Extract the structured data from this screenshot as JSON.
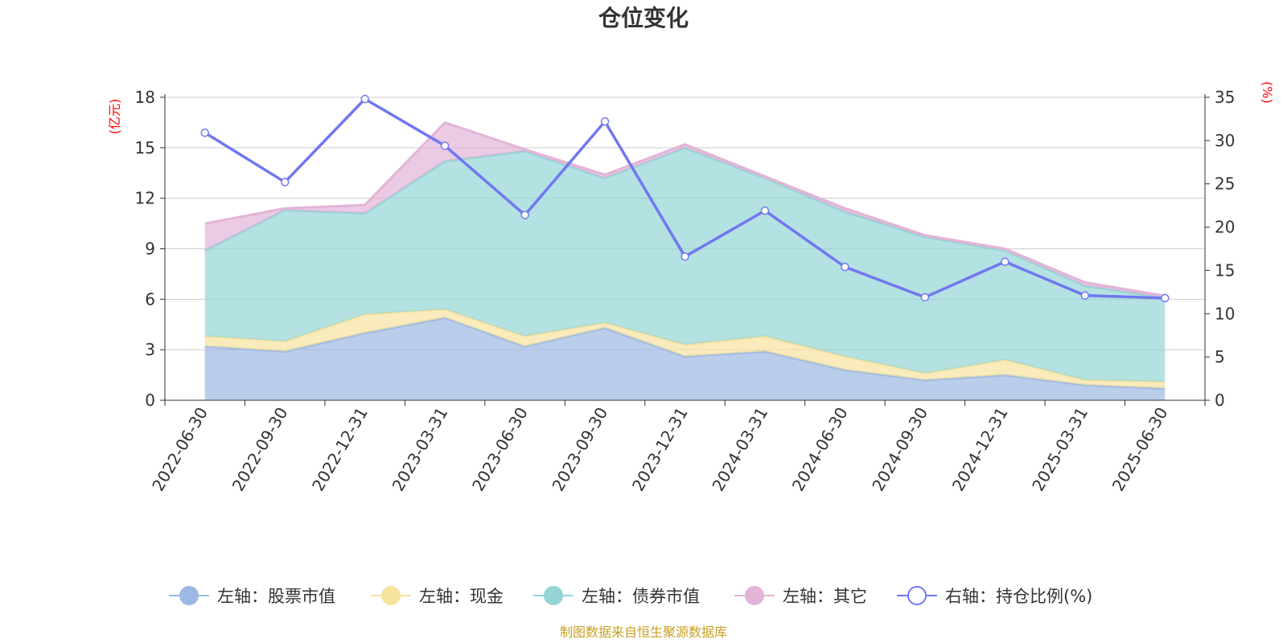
{
  "colors": {
    "stock": "#9cb8e3",
    "cash": "#f7e3a0",
    "bond": "#94d4d4",
    "other": "#e3b4d8",
    "ratio": "#7177f0",
    "unit_text": "#ff0000",
    "source_text": "#c8a020",
    "axis": "#333333",
    "grid": "#cccccc"
  },
  "chart_data": {
    "type": "area",
    "title": "仓位变化",
    "x": [
      "2022-06-30",
      "2022-09-30",
      "2022-12-31",
      "2023-03-31",
      "2023-06-30",
      "2023-09-30",
      "2023-12-31",
      "2024-03-31",
      "2024-06-30",
      "2024-09-30",
      "2024-12-31",
      "2025-03-31",
      "2025-06-30"
    ],
    "left_axis": {
      "unit": "(亿元)",
      "ylim": [
        0,
        18
      ],
      "ticks": [
        "0",
        "3",
        "6",
        "9",
        "12",
        "15",
        "18"
      ]
    },
    "right_axis": {
      "unit": "(%)",
      "ylim": [
        0,
        35
      ],
      "ticks": [
        "0",
        "5",
        "10",
        "15",
        "20",
        "25",
        "30",
        "35"
      ]
    },
    "stacked": true,
    "grid": true,
    "legend_position": "bottom",
    "series": [
      {
        "name": "左轴：股票市值",
        "key": "stock",
        "axis": "left",
        "values": [
          3.2,
          2.9,
          4.0,
          4.9,
          3.2,
          4.3,
          2.6,
          2.9,
          1.8,
          1.2,
          1.5,
          0.9,
          0.7
        ]
      },
      {
        "name": "左轴：现金",
        "key": "cash",
        "axis": "left",
        "values": [
          0.6,
          0.6,
          1.1,
          0.5,
          0.6,
          0.3,
          0.7,
          0.9,
          0.8,
          0.4,
          0.9,
          0.3,
          0.4
        ]
      },
      {
        "name": "左轴：债券市值",
        "key": "bond",
        "axis": "left",
        "values": [
          5.1,
          7.8,
          6.0,
          8.8,
          11.0,
          8.6,
          11.7,
          9.4,
          8.6,
          8.1,
          6.5,
          5.6,
          5.0
        ]
      },
      {
        "name": "左轴：其它",
        "key": "other",
        "axis": "left",
        "values": [
          1.6,
          0.1,
          0.5,
          2.3,
          0.1,
          0.2,
          0.2,
          0.1,
          0.2,
          0.1,
          0.1,
          0.2,
          0.1
        ]
      },
      {
        "name": "右轴：持仓比例(%)",
        "key": "ratio",
        "axis": "right",
        "values": [
          30.9,
          25.2,
          34.8,
          29.4,
          21.4,
          32.2,
          16.6,
          21.9,
          15.4,
          11.9,
          16.0,
          12.1,
          11.8
        ]
      }
    ]
  },
  "source": "制图数据来自恒生聚源数据库"
}
